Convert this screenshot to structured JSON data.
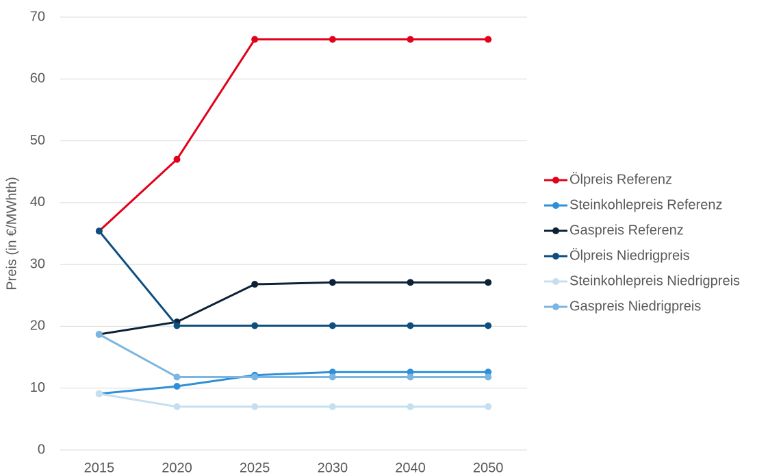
{
  "chart_data": {
    "type": "line",
    "y_label": "Preis (in €/MWhth)",
    "categories": [
      "2015",
      "2020",
      "2025",
      "2030",
      "2040",
      "2050"
    ],
    "series": [
      {
        "name": "Ölpreis Referenz",
        "color": "#e2001a",
        "values": [
          35.4,
          47.0,
          66.4,
          66.4,
          66.4,
          66.4
        ]
      },
      {
        "name": "Steinkohlepreis Referenz",
        "color": "#2f8fd8",
        "values": [
          9.1,
          10.3,
          12.1,
          12.6,
          12.6,
          12.6
        ]
      },
      {
        "name": "Gaspreis Referenz",
        "color": "#0d2137",
        "values": [
          18.7,
          20.7,
          26.8,
          27.1,
          27.1,
          27.1
        ]
      },
      {
        "name": "Ölpreis Niedrigpreis",
        "color": "#0c4f80",
        "values": [
          35.4,
          20.1,
          20.1,
          20.1,
          20.1,
          20.1
        ]
      },
      {
        "name": "Steinkohlepreis Niedrigpreis",
        "color": "#c5dff0",
        "values": [
          9.1,
          7.0,
          7.0,
          7.0,
          7.0,
          7.0
        ]
      },
      {
        "name": "Gaspreis Niedrigpreis",
        "color": "#7ab6e1",
        "values": [
          18.7,
          11.8,
          11.8,
          11.8,
          11.8,
          11.8
        ]
      }
    ],
    "ylim": [
      0,
      70
    ],
    "yticks": [
      0,
      10,
      20,
      30,
      40,
      50,
      60,
      70
    ],
    "grid": true,
    "legend": "right"
  }
}
